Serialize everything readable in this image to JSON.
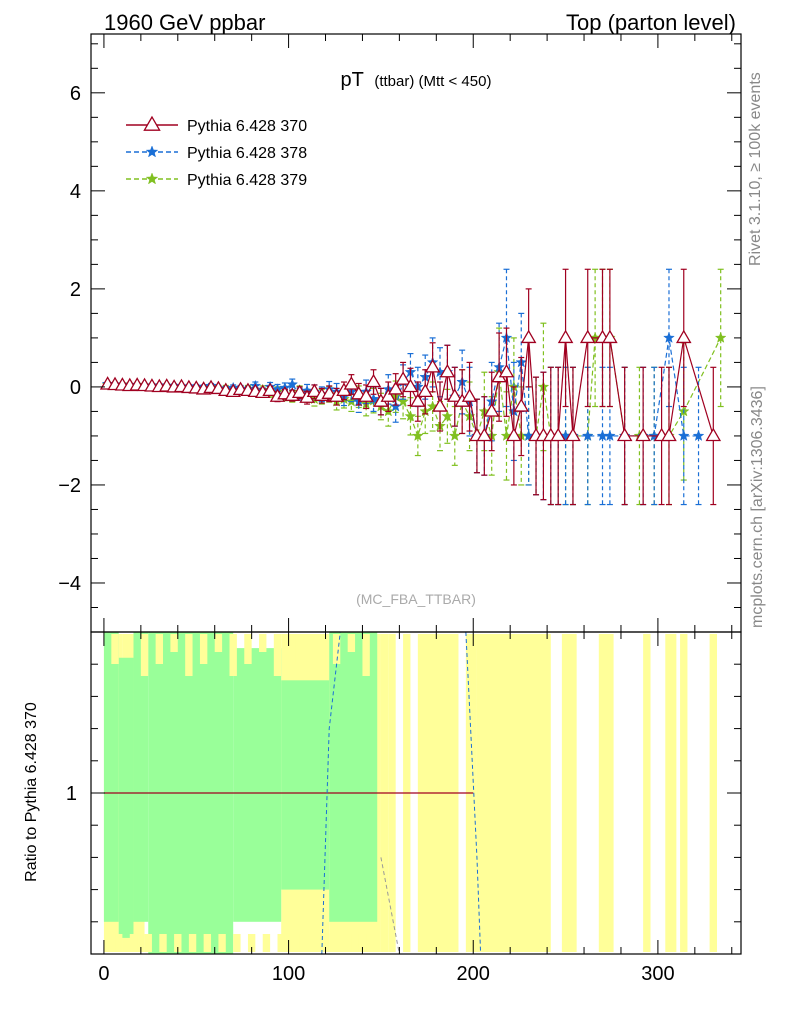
{
  "header": {
    "left": "1960 GeV ppbar",
    "right": "Top (parton level)"
  },
  "side_labels": {
    "rivet": "Rivet 3.1.10, ≥ 100k events",
    "mcplots": "mcplots.cern.ch [arXiv:1306.3436]"
  },
  "colors": {
    "s370": "#a00020",
    "s378": "#1a6fd6",
    "s379": "#80c020",
    "band_yellow": "#ffff99",
    "band_green": "#99ff99"
  },
  "chart_data": [
    {
      "type": "line",
      "title_main": "pT",
      "title_sub": "(ttbar) (Mtt < 450)",
      "watermark": "(MC_FBA_TTBAR)",
      "xlim": [
        -7,
        345
      ],
      "ylim": [
        -5,
        7.2
      ],
      "y_ticks": [
        -4,
        -2,
        0,
        2,
        4,
        6
      ],
      "y_tick_labels": [
        "−4",
        "−2",
        "0",
        "2",
        "4",
        "6"
      ],
      "x_ticks": [
        0,
        100,
        200,
        300
      ],
      "grid": false,
      "legend": "top-left",
      "series": [
        {
          "name": "Pythia 6.428 370",
          "marker": "triangle",
          "x": [
            2,
            6,
            10,
            14,
            18,
            22,
            26,
            30,
            34,
            38,
            42,
            46,
            50,
            54,
            58,
            62,
            66,
            70,
            74,
            78,
            82,
            86,
            90,
            94,
            98,
            102,
            106,
            110,
            114,
            118,
            122,
            126,
            130,
            134,
            138,
            142,
            146,
            150,
            154,
            158,
            162,
            166,
            170,
            174,
            178,
            182,
            186,
            190,
            194,
            198,
            202,
            206,
            210,
            214,
            218,
            222,
            226,
            230,
            234,
            238,
            242,
            246,
            250,
            254,
            262,
            270,
            274,
            282,
            292,
            302,
            306,
            314,
            330
          ],
          "y": [
            0.05,
            0.04,
            0.03,
            0.02,
            0.03,
            0.02,
            0.01,
            0.0,
            0.01,
            -0.01,
            0.0,
            -0.02,
            -0.03,
            -0.05,
            -0.02,
            -0.04,
            -0.08,
            -0.1,
            -0.06,
            -0.08,
            -0.1,
            -0.12,
            -0.08,
            -0.2,
            -0.15,
            -0.18,
            -0.12,
            -0.22,
            -0.1,
            -0.18,
            -0.14,
            -0.2,
            -0.08,
            0.05,
            -0.15,
            -0.2,
            0.1,
            -0.3,
            -0.2,
            -0.05,
            0.15,
            0.0,
            -0.3,
            -0.1,
            0.4,
            -0.4,
            0.3,
            -0.2,
            -0.3,
            -0.2,
            -1.0,
            -1.0,
            -0.5,
            0.2,
            0.3,
            -1.0,
            -0.4,
            1.0,
            -1.0,
            -1.0,
            -1.0,
            -1.0,
            1.0,
            -1.0,
            1.0,
            1.0,
            1.0,
            -1.0,
            -1.0,
            -1.0,
            -1.0,
            1.0,
            -1.0
          ],
          "err": [
            0.03,
            0.03,
            0.03,
            0.03,
            0.03,
            0.03,
            0.03,
            0.03,
            0.04,
            0.04,
            0.04,
            0.04,
            0.05,
            0.05,
            0.05,
            0.06,
            0.06,
            0.06,
            0.07,
            0.07,
            0.08,
            0.08,
            0.09,
            0.1,
            0.1,
            0.11,
            0.12,
            0.13,
            0.14,
            0.15,
            0.16,
            0.17,
            0.18,
            0.2,
            0.22,
            0.24,
            0.25,
            0.27,
            0.3,
            0.32,
            0.35,
            0.38,
            0.4,
            0.45,
            0.5,
            0.5,
            0.55,
            0.6,
            0.65,
            0.7,
            0.75,
            0.8,
            0.8,
            0.9,
            0.9,
            1.0,
            1.0,
            1.0,
            1.2,
            1.3,
            1.4,
            1.4,
            1.4,
            1.4,
            1.4,
            1.4,
            1.4,
            1.4,
            1.4,
            1.4,
            1.4,
            1.4,
            1.4
          ]
        },
        {
          "name": "Pythia 6.428 378",
          "marker": "star",
          "x": [
            2,
            6,
            10,
            14,
            18,
            22,
            26,
            30,
            34,
            38,
            42,
            46,
            50,
            54,
            58,
            62,
            66,
            70,
            74,
            78,
            82,
            86,
            90,
            94,
            98,
            102,
            106,
            110,
            114,
            118,
            122,
            126,
            130,
            134,
            138,
            142,
            146,
            150,
            154,
            158,
            162,
            166,
            170,
            174,
            178,
            182,
            186,
            190,
            194,
            198,
            202,
            206,
            210,
            214,
            218,
            222,
            226,
            230,
            234,
            238,
            242,
            246,
            250,
            254,
            262,
            270,
            274,
            282,
            292,
            298,
            306,
            314,
            322
          ],
          "y": [
            0.06,
            0.05,
            0.04,
            0.04,
            0.03,
            0.03,
            0.02,
            0.03,
            0.02,
            0.02,
            0.01,
            0.01,
            0.0,
            -0.01,
            0.02,
            -0.03,
            -0.05,
            -0.02,
            -0.04,
            -0.06,
            0.02,
            -0.1,
            0.0,
            -0.05,
            -0.02,
            0.05,
            -0.15,
            -0.08,
            -0.1,
            -0.15,
            -0.05,
            -0.1,
            -0.2,
            -0.1,
            -0.3,
            -0.1,
            -0.25,
            -0.3,
            -0.05,
            -0.4,
            0.1,
            0.3,
            0.0,
            0.2,
            0.5,
            0.3,
            0.3,
            -0.2,
            0.1,
            -0.3,
            -1.0,
            -1.0,
            -0.3,
            0.4,
            1.0,
            -0.5,
            0.5,
            -1.0,
            -1.0,
            -1.0,
            -1.0,
            -1.0,
            -1.0,
            -1.0,
            -1.0,
            -1.0,
            -1.0,
            -1.0,
            -1.0,
            -1.0,
            1.0,
            -1.0,
            -1.0
          ],
          "err": [
            0.03,
            0.03,
            0.03,
            0.03,
            0.03,
            0.03,
            0.03,
            0.03,
            0.04,
            0.04,
            0.04,
            0.04,
            0.05,
            0.05,
            0.05,
            0.06,
            0.06,
            0.06,
            0.07,
            0.07,
            0.08,
            0.08,
            0.09,
            0.1,
            0.1,
            0.11,
            0.12,
            0.13,
            0.14,
            0.15,
            0.16,
            0.17,
            0.18,
            0.2,
            0.22,
            0.24,
            0.25,
            0.27,
            0.3,
            0.32,
            0.35,
            0.38,
            0.4,
            0.45,
            0.5,
            0.5,
            0.55,
            0.6,
            0.65,
            0.7,
            0.75,
            0.8,
            0.8,
            0.9,
            1.4,
            1.0,
            1.0,
            1.0,
            1.2,
            1.3,
            1.4,
            1.4,
            1.4,
            1.4,
            1.4,
            1.4,
            1.4,
            1.4,
            1.4,
            1.4,
            1.4,
            1.4,
            1.4
          ]
        },
        {
          "name": "Pythia 6.428 379",
          "marker": "star",
          "x": [
            2,
            6,
            10,
            14,
            18,
            22,
            26,
            30,
            34,
            38,
            42,
            46,
            50,
            54,
            58,
            62,
            66,
            70,
            74,
            78,
            82,
            86,
            90,
            94,
            98,
            102,
            106,
            110,
            114,
            118,
            122,
            126,
            130,
            134,
            138,
            142,
            146,
            150,
            154,
            158,
            162,
            166,
            170,
            174,
            178,
            182,
            186,
            190,
            194,
            198,
            202,
            206,
            210,
            214,
            218,
            222,
            226,
            230,
            234,
            238,
            242,
            246,
            250,
            254,
            262,
            266,
            270,
            274,
            282,
            290,
            298,
            306,
            314,
            334
          ],
          "y": [
            0.04,
            0.03,
            0.05,
            0.02,
            0.04,
            0.01,
            0.03,
            -0.01,
            0.02,
            0.0,
            -0.02,
            -0.01,
            -0.04,
            -0.02,
            0.0,
            -0.05,
            -0.03,
            -0.08,
            -0.05,
            -0.04,
            -0.1,
            -0.06,
            -0.12,
            -0.1,
            -0.18,
            -0.2,
            -0.1,
            -0.18,
            -0.25,
            -0.2,
            -0.15,
            -0.3,
            -0.25,
            -0.3,
            -0.2,
            -0.35,
            -0.28,
            -0.4,
            -0.5,
            -0.2,
            -0.3,
            -0.6,
            -1.0,
            -0.5,
            -0.4,
            -0.8,
            -0.6,
            -1.0,
            -0.3,
            -0.6,
            -1.0,
            -0.5,
            -1.0,
            0.3,
            -1.0,
            0.0,
            -1.0,
            -1.0,
            -1.0,
            0.0,
            -1.0,
            -1.0,
            -1.0,
            -1.0,
            -1.0,
            1.0,
            1.0,
            1.0,
            -1.0,
            -1.0,
            -1.0,
            -1.0,
            -0.5,
            1.0
          ],
          "err": [
            0.03,
            0.03,
            0.03,
            0.03,
            0.03,
            0.03,
            0.03,
            0.03,
            0.04,
            0.04,
            0.04,
            0.04,
            0.05,
            0.05,
            0.05,
            0.06,
            0.06,
            0.06,
            0.07,
            0.07,
            0.08,
            0.08,
            0.09,
            0.1,
            0.1,
            0.11,
            0.12,
            0.13,
            0.14,
            0.15,
            0.16,
            0.17,
            0.18,
            0.2,
            0.22,
            0.24,
            0.25,
            0.27,
            0.3,
            0.32,
            0.35,
            0.38,
            0.4,
            0.45,
            0.5,
            0.5,
            0.55,
            0.6,
            0.65,
            0.7,
            0.75,
            0.8,
            0.8,
            0.9,
            0.9,
            1.0,
            1.0,
            1.0,
            1.2,
            1.3,
            1.4,
            1.4,
            1.4,
            1.4,
            1.4,
            1.4,
            1.4,
            1.4,
            1.4,
            1.4,
            1.4,
            1.4,
            1.4,
            1.4
          ]
        }
      ]
    },
    {
      "type": "area",
      "ylabel": "Ratio to Pythia 6.428 370",
      "xlim": [
        -7,
        345
      ],
      "ylim": [
        0.5,
        1.5
      ],
      "y_ticks": [
        1
      ],
      "y_tick_labels": [
        "1"
      ],
      "x_ticks": [
        0,
        100,
        200,
        300
      ],
      "x_tick_labels": [
        "0",
        "100",
        "200",
        "300"
      ],
      "grid": false,
      "bands": {
        "yellow": [
          [
            0,
            8
          ],
          [
            8,
            10
          ],
          [
            10,
            16
          ],
          [
            16,
            22
          ],
          [
            96,
            122
          ],
          [
            122,
            150
          ],
          [
            150,
            154
          ],
          [
            154,
            158
          ],
          [
            162,
            166
          ],
          [
            170,
            192
          ],
          [
            196,
            202
          ],
          [
            202,
            242
          ],
          [
            248,
            256
          ],
          [
            268,
            276
          ],
          [
            292,
            296
          ],
          [
            304,
            310
          ],
          [
            312,
            316
          ],
          [
            328,
            332
          ]
        ],
        "green": [
          [
            0,
            8,
            0.6,
            1.5
          ],
          [
            8,
            16,
            0.55,
            1.42
          ],
          [
            16,
            24,
            0.6,
            1.5
          ],
          [
            24,
            70,
            0.5,
            1.5
          ],
          [
            70,
            96,
            0.6,
            1.45
          ],
          [
            96,
            122,
            0.7,
            1.35
          ],
          [
            122,
            148,
            0.6,
            1.5
          ]
        ]
      }
    }
  ]
}
